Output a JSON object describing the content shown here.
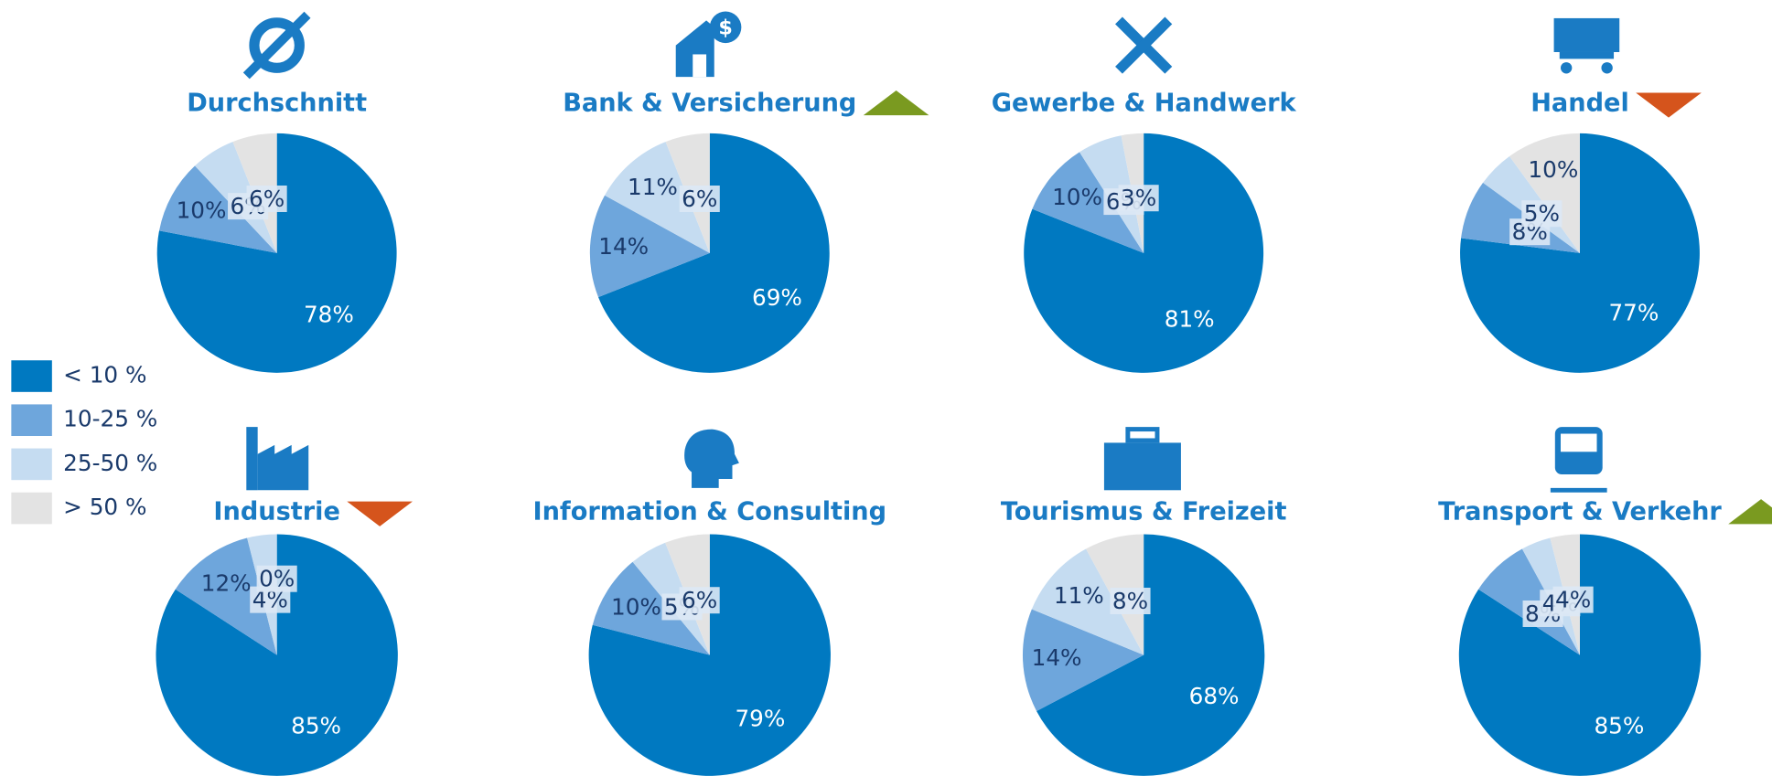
{
  "legend": {
    "categories": [
      "< 10 %",
      "10-25 %",
      "25-50 %",
      "> 50 %"
    ],
    "colors": [
      "#0079c1",
      "#6ea6dc",
      "#c5dcf1",
      "#e3e3e3"
    ]
  },
  "chart_data": [
    {
      "type": "pie",
      "title": "Durchschnitt",
      "values": [
        78,
        10,
        6,
        6
      ],
      "value_labels": [
        "78%",
        "10%",
        "6%",
        "6%"
      ]
    },
    {
      "type": "pie",
      "title": "Bank & Versicherung",
      "trend": "up",
      "values": [
        69,
        14,
        11,
        6
      ],
      "value_labels": [
        "69%",
        "14%",
        "11%",
        "6%"
      ]
    },
    {
      "type": "pie",
      "title": "Gewerbe & Handwerk",
      "values": [
        81,
        10,
        6,
        3
      ],
      "value_labels": [
        "81%",
        "10%",
        "6%",
        "3%"
      ]
    },
    {
      "type": "pie",
      "title": "Handel",
      "trend": "down",
      "values": [
        77,
        8,
        5,
        10
      ],
      "value_labels": [
        "77%",
        "8%",
        "5%",
        "10%"
      ]
    },
    {
      "type": "pie",
      "title": "Industrie",
      "trend": "down",
      "values": [
        85,
        12,
        4,
        0
      ],
      "value_labels": [
        "85%",
        "12%",
        "4%",
        "0%"
      ]
    },
    {
      "type": "pie",
      "title": "Information & Consulting",
      "values": [
        79,
        10,
        5,
        6
      ],
      "value_labels": [
        "79%",
        "10%",
        "5%",
        "6%"
      ]
    },
    {
      "type": "pie",
      "title": "Tourismus & Freizeit",
      "values": [
        68,
        14,
        11,
        8
      ],
      "value_labels": [
        "68%",
        "14%",
        "11%",
        "8%"
      ]
    },
    {
      "type": "pie",
      "title": "Transport & Verkehr",
      "trend": "up",
      "values": [
        85,
        8,
        4,
        4
      ],
      "value_labels": [
        "85%",
        "8%",
        "4%",
        "4%"
      ]
    }
  ]
}
